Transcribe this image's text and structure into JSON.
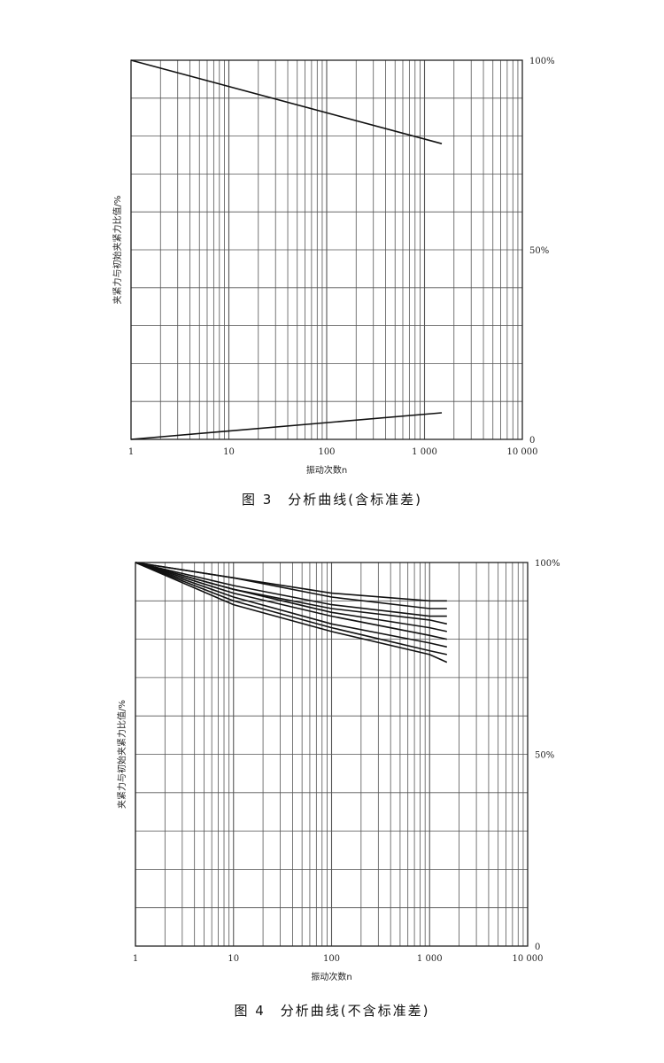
{
  "chart_data": [
    {
      "type": "line",
      "title": "图 3　分析曲线(含标准差)",
      "xlabel": "振动次数n",
      "ylabel": "夹紧力与初始夹紧力比值/%",
      "x_scale": "log",
      "xlim": [
        1,
        10000
      ],
      "ylim": [
        0,
        100
      ],
      "x_ticks": [
        "1",
        "10",
        "100",
        "1 000",
        "10 000"
      ],
      "y_ticks": [
        "0",
        "50%",
        "100%"
      ],
      "grid": true,
      "series": [
        {
          "x": [
            1,
            1500
          ],
          "y": [
            100,
            78
          ]
        },
        {
          "x": [
            1,
            1500
          ],
          "y": [
            0,
            7
          ]
        }
      ]
    },
    {
      "type": "line",
      "title": "图 4　分析曲线(不含标准差)",
      "xlabel": "振动次数n",
      "ylabel": "夹紧力与初始夹紧力比值/%",
      "x_scale": "log",
      "xlim": [
        1,
        10000
      ],
      "ylim": [
        0,
        100
      ],
      "x_ticks": [
        "1",
        "10",
        "100",
        "1 000",
        "10 000"
      ],
      "y_ticks": [
        "0",
        "50%",
        "100%"
      ],
      "grid": true,
      "series": [
        {
          "x": [
            1,
            10,
            100,
            1000,
            1500
          ],
          "y": [
            100,
            96,
            92,
            90,
            90
          ]
        },
        {
          "x": [
            1,
            10,
            100,
            1000,
            1500
          ],
          "y": [
            100,
            96,
            91,
            88,
            88
          ]
        },
        {
          "x": [
            1,
            10,
            100,
            1000,
            1500
          ],
          "y": [
            100,
            94,
            89,
            86,
            86
          ]
        },
        {
          "x": [
            1,
            10,
            100,
            1000,
            1500
          ],
          "y": [
            100,
            93,
            88,
            85,
            84
          ]
        },
        {
          "x": [
            1,
            10,
            100,
            1000,
            1500
          ],
          "y": [
            100,
            93,
            87,
            83,
            82
          ]
        },
        {
          "x": [
            1,
            10,
            100,
            1000,
            1500
          ],
          "y": [
            100,
            92,
            86,
            81,
            80
          ]
        },
        {
          "x": [
            1,
            10,
            100,
            1000,
            1500
          ],
          "y": [
            100,
            91,
            84,
            79,
            78
          ]
        },
        {
          "x": [
            1,
            10,
            100,
            1000,
            1500
          ],
          "y": [
            100,
            90,
            83,
            77,
            76
          ]
        },
        {
          "x": [
            1,
            10,
            100,
            1000,
            1500
          ],
          "y": [
            100,
            89,
            82,
            76,
            74
          ]
        }
      ]
    }
  ]
}
